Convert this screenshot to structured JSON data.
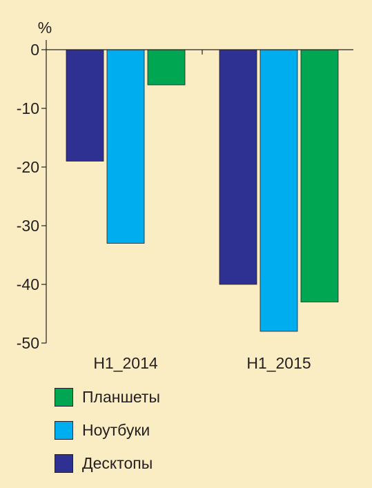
{
  "chart_data": {
    "type": "bar",
    "ylabel": "%",
    "ylim": [
      -50,
      0
    ],
    "yticks": [
      0,
      -10,
      -20,
      -30,
      -40,
      -50
    ],
    "categories": [
      "H1_2014",
      "H1_2015"
    ],
    "series": [
      {
        "name": "Десктопы",
        "color": "#2e3192",
        "values": [
          -19,
          -40
        ]
      },
      {
        "name": "Ноутбуки",
        "color": "#00aeef",
        "values": [
          -33,
          -48
        ]
      },
      {
        "name": "Планшеты",
        "color": "#00a651",
        "values": [
          -6,
          -43
        ]
      }
    ],
    "legend": [
      "Планшеты",
      "Ноутбуки",
      "Десктопы"
    ],
    "legend_position": "bottom-left",
    "grid": false
  }
}
